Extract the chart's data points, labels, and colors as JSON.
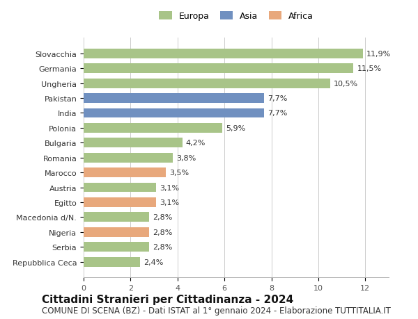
{
  "categories": [
    "Repubblica Ceca",
    "Serbia",
    "Nigeria",
    "Macedonia d/N.",
    "Egitto",
    "Austria",
    "Marocco",
    "Romania",
    "Bulgaria",
    "Polonia",
    "India",
    "Pakistan",
    "Ungheria",
    "Germania",
    "Slovacchia"
  ],
  "values": [
    2.4,
    2.8,
    2.8,
    2.8,
    3.1,
    3.1,
    3.5,
    3.8,
    4.2,
    5.9,
    7.7,
    7.7,
    10.5,
    11.5,
    11.9
  ],
  "colors": [
    "#a8c488",
    "#a8c488",
    "#e8a87c",
    "#a8c488",
    "#e8a87c",
    "#a8c488",
    "#e8a87c",
    "#a8c488",
    "#a8c488",
    "#a8c488",
    "#7090c0",
    "#7090c0",
    "#a8c488",
    "#a8c488",
    "#a8c488"
  ],
  "labels": [
    "2,4%",
    "2,8%",
    "2,8%",
    "2,8%",
    "3,1%",
    "3,1%",
    "3,5%",
    "3,8%",
    "4,2%",
    "5,9%",
    "7,7%",
    "7,7%",
    "10,5%",
    "11,5%",
    "11,9%"
  ],
  "legend": [
    {
      "label": "Europa",
      "color": "#a8c488"
    },
    {
      "label": "Asia",
      "color": "#7090c0"
    },
    {
      "label": "Africa",
      "color": "#e8a87c"
    }
  ],
  "title": "Cittadini Stranieri per Cittadinanza - 2024",
  "subtitle": "COMUNE DI SCENA (BZ) - Dati ISTAT al 1° gennaio 2024 - Elaborazione TUTTITALIA.IT",
  "xlim": [
    0,
    13
  ],
  "xticks": [
    0,
    2,
    4,
    6,
    8,
    10,
    12
  ],
  "background_color": "#ffffff",
  "bar_height": 0.65,
  "title_fontsize": 11,
  "subtitle_fontsize": 8.5,
  "label_fontsize": 8,
  "tick_fontsize": 8,
  "legend_fontsize": 9
}
